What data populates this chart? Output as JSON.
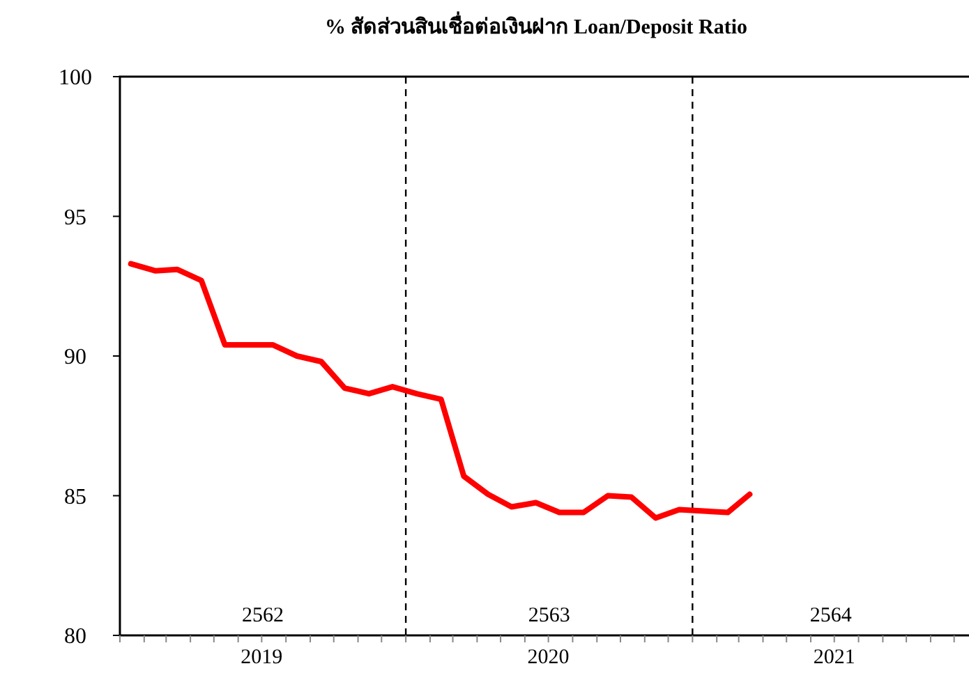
{
  "chart_data": {
    "type": "line",
    "title": "% สัดส่วนสินเชื่อต่อเงินฝาก Loan/Deposit Ratio",
    "x": [
      "2019-01-15",
      "2019-02-15",
      "2019-03-15",
      "2019-04-15",
      "2019-05-15",
      "2019-06-15",
      "2019-07-15",
      "2019-08-15",
      "2019-09-15",
      "2019-10-15",
      "2019-11-15",
      "2019-12-15",
      "2020-01-15",
      "2020-02-15",
      "2020-03-15",
      "2020-04-15",
      "2020-05-15",
      "2020-06-15",
      "2020-07-15",
      "2020-08-15",
      "2020-09-15",
      "2020-10-15",
      "2020-11-15",
      "2020-12-15",
      "2021-01-15",
      "2021-02-15",
      "2021-03-15"
    ],
    "series": [
      {
        "color": "#ff0000",
        "values": [
          93.3,
          93.05,
          93.1,
          92.7,
          90.4,
          90.4,
          90.4,
          90.0,
          89.8,
          88.85,
          88.65,
          88.9,
          88.65,
          88.45,
          85.7,
          85.05,
          84.6,
          84.75,
          84.4,
          84.4,
          85.0,
          84.95,
          84.2,
          84.5,
          84.45,
          84.4,
          85.05
        ]
      }
    ],
    "xlim": [
      "2019-01-01",
      "2021-12-20"
    ],
    "xticks": [
      {
        "value": "2019-01-01",
        "label": null
      },
      {
        "value": "2019-02-01",
        "label": null
      },
      {
        "value": "2019-03-01",
        "label": null
      },
      {
        "value": "2019-04-01",
        "label": null
      },
      {
        "value": "2019-05-01",
        "label": null
      },
      {
        "value": "2019-06-01",
        "label": null
      },
      {
        "value": "2019-07-01",
        "label": "2019"
      },
      {
        "value": "2019-08-01",
        "label": null
      },
      {
        "value": "2019-09-01",
        "label": null
      },
      {
        "value": "2019-10-01",
        "label": null
      },
      {
        "value": "2019-11-01",
        "label": null
      },
      {
        "value": "2019-12-01",
        "label": null
      },
      {
        "value": "2020-01-01",
        "label": null
      },
      {
        "value": "2020-02-01",
        "label": null
      },
      {
        "value": "2020-03-01",
        "label": null
      },
      {
        "value": "2020-04-01",
        "label": null
      },
      {
        "value": "2020-05-01",
        "label": null
      },
      {
        "value": "2020-06-01",
        "label": null
      },
      {
        "value": "2020-07-01",
        "label": "2020"
      },
      {
        "value": "2020-08-01",
        "label": null
      },
      {
        "value": "2020-09-01",
        "label": null
      },
      {
        "value": "2020-10-01",
        "label": null
      },
      {
        "value": "2020-11-01",
        "label": null
      },
      {
        "value": "2020-12-01",
        "label": null
      },
      {
        "value": "2021-01-01",
        "label": null
      },
      {
        "value": "2021-02-01",
        "label": null
      },
      {
        "value": "2021-03-01",
        "label": null
      },
      {
        "value": "2021-04-01",
        "label": null
      },
      {
        "value": "2021-05-01",
        "label": null
      },
      {
        "value": "2021-06-01",
        "label": null
      },
      {
        "value": "2021-07-01",
        "label": "2021"
      },
      {
        "value": "2021-08-01",
        "label": null
      },
      {
        "value": "2021-09-01",
        "label": null
      },
      {
        "value": "2021-10-01",
        "label": null
      },
      {
        "value": "2021-11-01",
        "label": null
      },
      {
        "value": "2021-12-01",
        "label": null
      }
    ],
    "ylim": [
      80,
      100
    ],
    "yticks": [
      80,
      85,
      90,
      95,
      100
    ],
    "ref_lines": [
      {
        "axis": "x",
        "value": "2020-01-01",
        "line_style": "dashed",
        "color": "#000000"
      },
      {
        "axis": "x",
        "value": "2021-01-01",
        "line_style": "dashed",
        "color": "#000000"
      }
    ],
    "annotations": [
      "2562",
      "2563",
      "2564"
    ],
    "grid": false,
    "marker": "none",
    "line_style": "solid"
  }
}
